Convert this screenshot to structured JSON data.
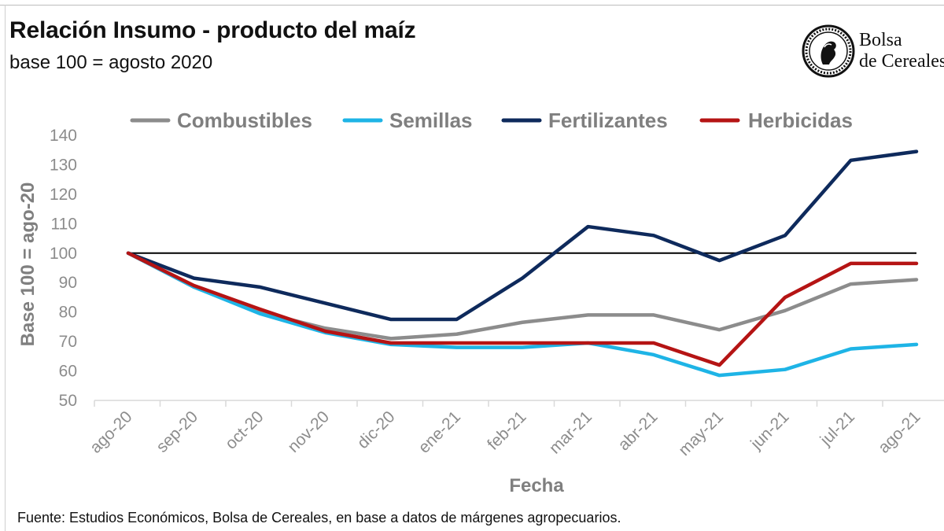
{
  "header": {
    "title": "Relación Insumo - producto del maíz",
    "subtitle": "base 100 = agosto 2020"
  },
  "logo": {
    "line1": "Bolsa",
    "line2": "de Cereales",
    "seal_text": "Bolsa de Cereales de Buenos Aires 1854"
  },
  "footnote": "Fuente: Estudios Económicos, Bolsa de Cereales, en base a datos de márgenes agropecuarios.",
  "chart_data": {
    "type": "line",
    "title": "Relación Insumo - producto del maíz",
    "subtitle": "base 100 = agosto 2020",
    "xlabel": "Fecha",
    "ylabel": "Base 100 = ago-20",
    "ylim": [
      50,
      140
    ],
    "yticks": [
      50,
      60,
      70,
      80,
      90,
      100,
      110,
      120,
      130,
      140
    ],
    "grid": false,
    "legend_position": "top",
    "reference_line": {
      "value": 100,
      "color": "#000000"
    },
    "categories": [
      "ago-20",
      "sep-20",
      "oct-20",
      "nov-20",
      "dic-20",
      "ene-21",
      "feb-21",
      "mar-21",
      "abr-21",
      "may-21",
      "jun-21",
      "jul-21",
      "ago-21"
    ],
    "series": [
      {
        "name": "Combustibles",
        "color": "#8c8c8c",
        "values": [
          100,
          88.5,
          80,
          74.5,
          71,
          72.5,
          76.5,
          79,
          79,
          74,
          80.5,
          89.5,
          91
        ]
      },
      {
        "name": "Semillas",
        "color": "#1eb4e6",
        "values": [
          100,
          88.5,
          79.5,
          73,
          69,
          68,
          68,
          69.5,
          65.5,
          58.5,
          60.5,
          67.5,
          69
        ]
      },
      {
        "name": "Fertilizantes",
        "color": "#0e2a5c",
        "values": [
          100,
          91.5,
          88.5,
          83,
          77.5,
          77.5,
          91.5,
          109,
          106,
          97.5,
          106,
          131.5,
          134.5
        ]
      },
      {
        "name": "Herbicidas",
        "color": "#b51414",
        "values": [
          100,
          89,
          81,
          73.5,
          69.5,
          69.5,
          69.5,
          69.5,
          69.5,
          62,
          85,
          96.5,
          96.5
        ]
      }
    ]
  }
}
